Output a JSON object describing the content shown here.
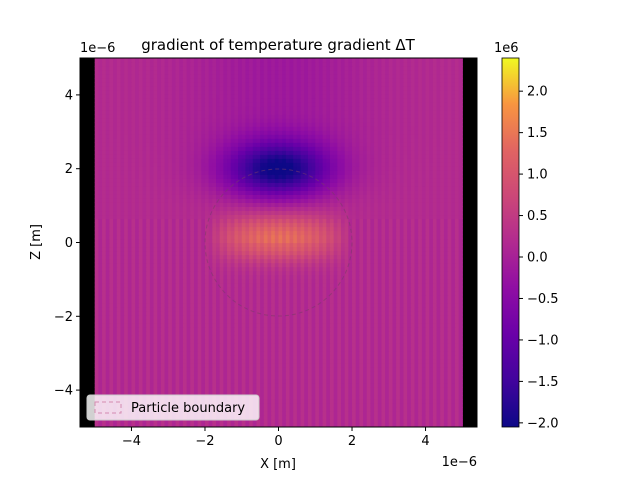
{
  "chart_data": {
    "type": "heatmap",
    "title": "gradient of temperature gradient ΔT",
    "xlabel": "X [m]",
    "ylabel": "Z [m]",
    "x_offset_label": "1e−6",
    "y_offset_label": "1e−6",
    "xlim": [
      -5.4,
      5.4
    ],
    "ylim": [
      -5.0,
      5.0
    ],
    "data_extent": {
      "x": [
        -5.0,
        5.0
      ],
      "z": [
        -5.0,
        5.0
      ]
    },
    "x_ticks": [
      -4,
      -2,
      0,
      2,
      4
    ],
    "x_tick_labels": [
      "−4",
      "−2",
      "0",
      "2",
      "4"
    ],
    "y_ticks": [
      -4,
      -2,
      0,
      2,
      4
    ],
    "y_tick_labels": [
      "−4",
      "−2",
      "0",
      "2",
      "4"
    ],
    "colormap": "plasma",
    "colorbar": {
      "label_offset": "1e6",
      "vmin": -2.05,
      "vmax": 2.4,
      "ticks": [
        -2.0,
        -1.5,
        -1.0,
        -0.5,
        0.0,
        0.5,
        1.0,
        1.5,
        2.0
      ],
      "tick_labels": [
        "−2.0",
        "−1.5",
        "−1.0",
        "−0.5",
        "0.0",
        "0.5",
        "1.0",
        "1.5",
        "2.0"
      ]
    },
    "particle": {
      "center": [
        0,
        0
      ],
      "radius": 2.0
    },
    "field_features": {
      "background_value": 0.2,
      "negative_lobe": {
        "center": [
          0,
          2.0
        ],
        "min_value": -2.0
      },
      "positive_band": {
        "z": 0.0,
        "max_value": 1.2
      }
    },
    "legend": {
      "location": "lower-left",
      "entries": [
        "Particle boundary"
      ]
    }
  }
}
